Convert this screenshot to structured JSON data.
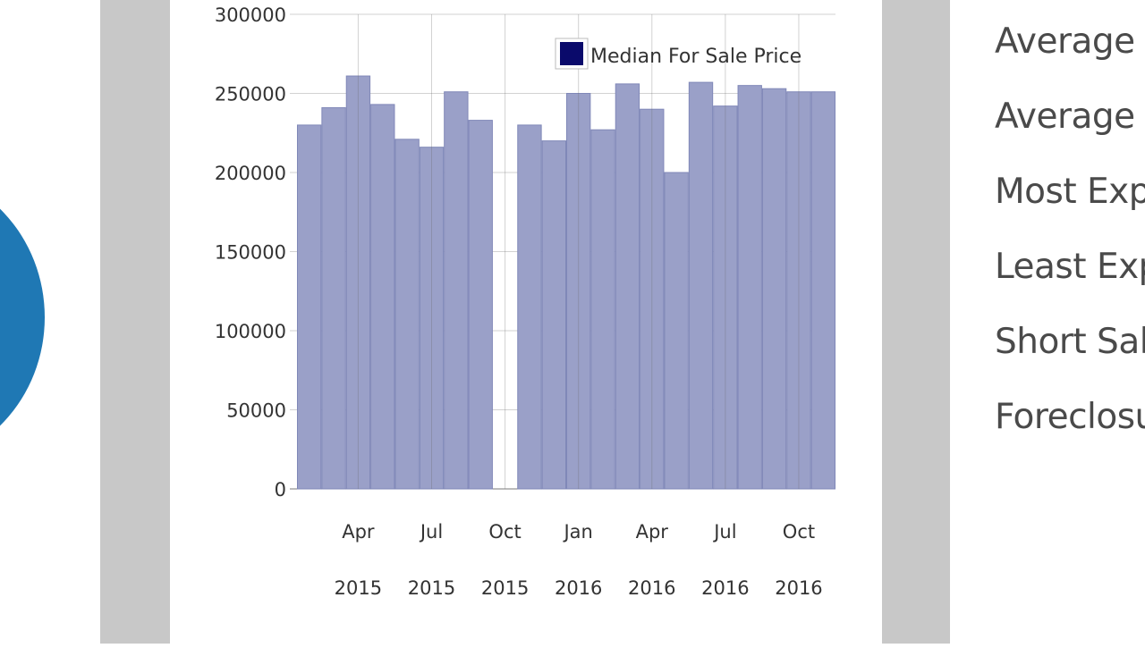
{
  "colors": {
    "bar_fill": "#9aa0c8",
    "bar_stroke": "#8088b8",
    "legend_swatch": "#0a0a6b",
    "donut": "#1f78b4",
    "gutter": "#c8c8c8",
    "grid": "#6b6b6b",
    "text": "#333333"
  },
  "chart_data": {
    "type": "bar",
    "legend": {
      "label": "Median For Sale Price",
      "position": "top-right"
    },
    "ylim": [
      0,
      300000
    ],
    "yticks": [
      "0",
      "50000",
      "100000",
      "150000",
      "200000",
      "250000",
      "300000"
    ],
    "grid": true,
    "x_ticks": [
      {
        "month": "Apr",
        "year": "2015"
      },
      {
        "month": "Jul",
        "year": "2015"
      },
      {
        "month": "Oct",
        "year": "2015"
      },
      {
        "month": "Jan",
        "year": "2016"
      },
      {
        "month": "Apr",
        "year": "2016"
      },
      {
        "month": "Jul",
        "year": "2016"
      },
      {
        "month": "Oct",
        "year": "2016"
      }
    ],
    "categories": [
      "2015-02",
      "2015-03",
      "2015-04",
      "2015-05",
      "2015-06",
      "2015-07",
      "2015-08",
      "2015-09",
      "2015-10",
      "2015-11",
      "2015-12",
      "2016-01",
      "2016-02",
      "2016-03",
      "2016-04",
      "2016-05",
      "2016-06",
      "2016-07",
      "2016-08",
      "2016-09",
      "2016-10",
      "2016-11"
    ],
    "series": [
      {
        "name": "Median For Sale Price",
        "values": [
          230000,
          241000,
          261000,
          243000,
          221000,
          216000,
          251000,
          233000,
          null,
          230000,
          220000,
          250000,
          227000,
          256000,
          240000,
          200000,
          257000,
          242000,
          255000,
          253000,
          251000,
          251000
        ]
      }
    ]
  },
  "stats_list": [
    "Average",
    "Average",
    "Most Exp",
    "Least Exp",
    "Short Sal",
    "Foreclosu"
  ]
}
